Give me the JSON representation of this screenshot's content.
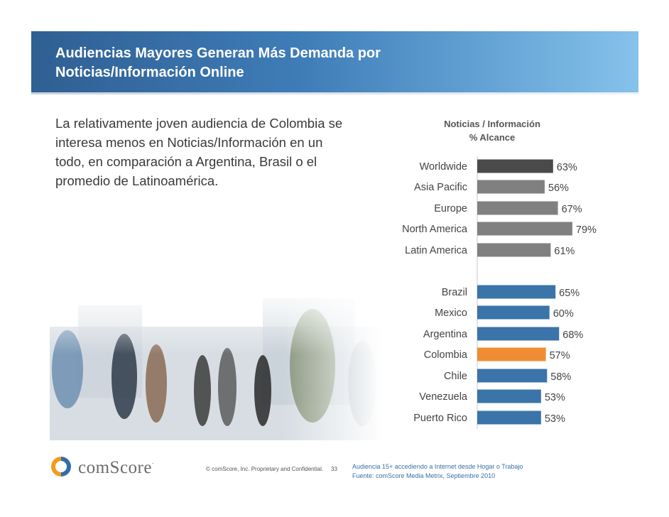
{
  "slide": {
    "title": "Audiencias  Mayores Generan Más Demanda por Noticias/Información Online",
    "intro": "La relativamente joven audiencia de Colombia se interesa menos en Noticias/Información en un todo, en comparación a Argentina, Brasil o el promedio de Latinoamérica."
  },
  "chart_data": {
    "type": "bar",
    "orientation": "horizontal",
    "title": "Noticias / Información",
    "subtitle": "% Alcance",
    "categories": [
      "Worldwide",
      "Asia Pacific",
      "Europe",
      "North America",
      "Latin America",
      "Brazil",
      "Mexico",
      "Argentina",
      "Colombia",
      "Chile",
      "Venezuela",
      "Puerto Rico"
    ],
    "values": [
      63,
      56,
      67,
      79,
      61,
      65,
      60,
      68,
      57,
      58,
      53,
      53
    ],
    "value_labels": [
      "63%",
      "56%",
      "67%",
      "79%",
      "61%",
      "65%",
      "60%",
      "68%",
      "57%",
      "58%",
      "53%",
      "53%"
    ],
    "groups": [
      "global",
      "region",
      "region",
      "region",
      "region",
      "country",
      "country",
      "country",
      "highlight",
      "country",
      "country",
      "country"
    ],
    "colors": {
      "global": "#4a4a4a",
      "region": "#808080",
      "country": "#3a74a9",
      "highlight": "#f08c33"
    },
    "xlim": [
      0,
      100
    ]
  },
  "footer": {
    "brand": "comScore",
    "trademark": ".",
    "copyright": "© comScore, Inc.  Proprietary and Confidential.",
    "page": "33",
    "note_line1": "Audiencia 15+ accediendo a Internet desde Hogar o Trabajo",
    "note_line2": "Fuente:  comScore Media Metrix, Septiembre 2010"
  }
}
